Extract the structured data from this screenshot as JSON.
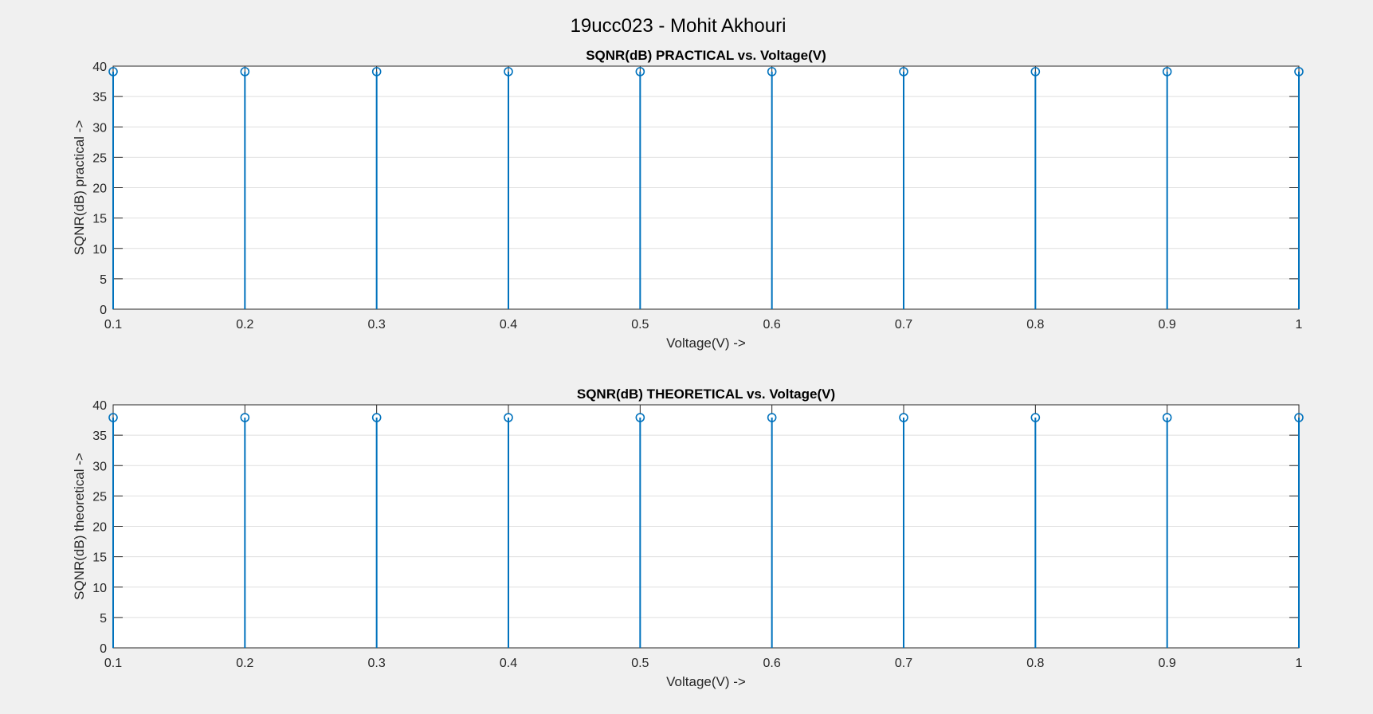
{
  "figure": {
    "title": "19ucc023 - Mohit Akhouri",
    "background": "#f0f0f0",
    "stem_color": "#0072bd"
  },
  "chart_data": [
    {
      "type": "stem",
      "title": "SQNR(dB) PRACTICAL vs. Voltage(V)",
      "xlabel": "Voltage(V) ->",
      "ylabel": "SQNR(dB) practical ->",
      "xlim": [
        0.1,
        1
      ],
      "ylim": [
        0,
        40
      ],
      "xticks": [
        "0.1",
        "0.2",
        "0.3",
        "0.4",
        "0.5",
        "0.6",
        "0.7",
        "0.8",
        "0.9",
        "1"
      ],
      "yticks": [
        "0",
        "5",
        "10",
        "15",
        "20",
        "25",
        "30",
        "35",
        "40"
      ],
      "grid": "horizontal",
      "marker": "circle",
      "x": [
        0.1,
        0.2,
        0.3,
        0.4,
        0.5,
        0.6,
        0.7,
        0.8,
        0.9,
        1.0
      ],
      "y": [
        39.1,
        39.1,
        39.1,
        39.1,
        39.1,
        39.1,
        39.1,
        39.1,
        39.1,
        39.1
      ]
    },
    {
      "type": "stem",
      "title": "SQNR(dB) THEORETICAL vs. Voltage(V)",
      "xlabel": "Voltage(V) ->",
      "ylabel": "SQNR(dB) theoretical ->",
      "xlim": [
        0.1,
        1
      ],
      "ylim": [
        0,
        40
      ],
      "xticks": [
        "0.1",
        "0.2",
        "0.3",
        "0.4",
        "0.5",
        "0.6",
        "0.7",
        "0.8",
        "0.9",
        "1"
      ],
      "yticks": [
        "0",
        "5",
        "10",
        "15",
        "20",
        "25",
        "30",
        "35",
        "40"
      ],
      "grid": "horizontal",
      "marker": "circle",
      "x": [
        0.1,
        0.2,
        0.3,
        0.4,
        0.5,
        0.6,
        0.7,
        0.8,
        0.9,
        1.0
      ],
      "y": [
        37.9,
        37.9,
        37.9,
        37.9,
        37.9,
        37.9,
        37.9,
        37.9,
        37.9,
        37.9
      ]
    }
  ]
}
